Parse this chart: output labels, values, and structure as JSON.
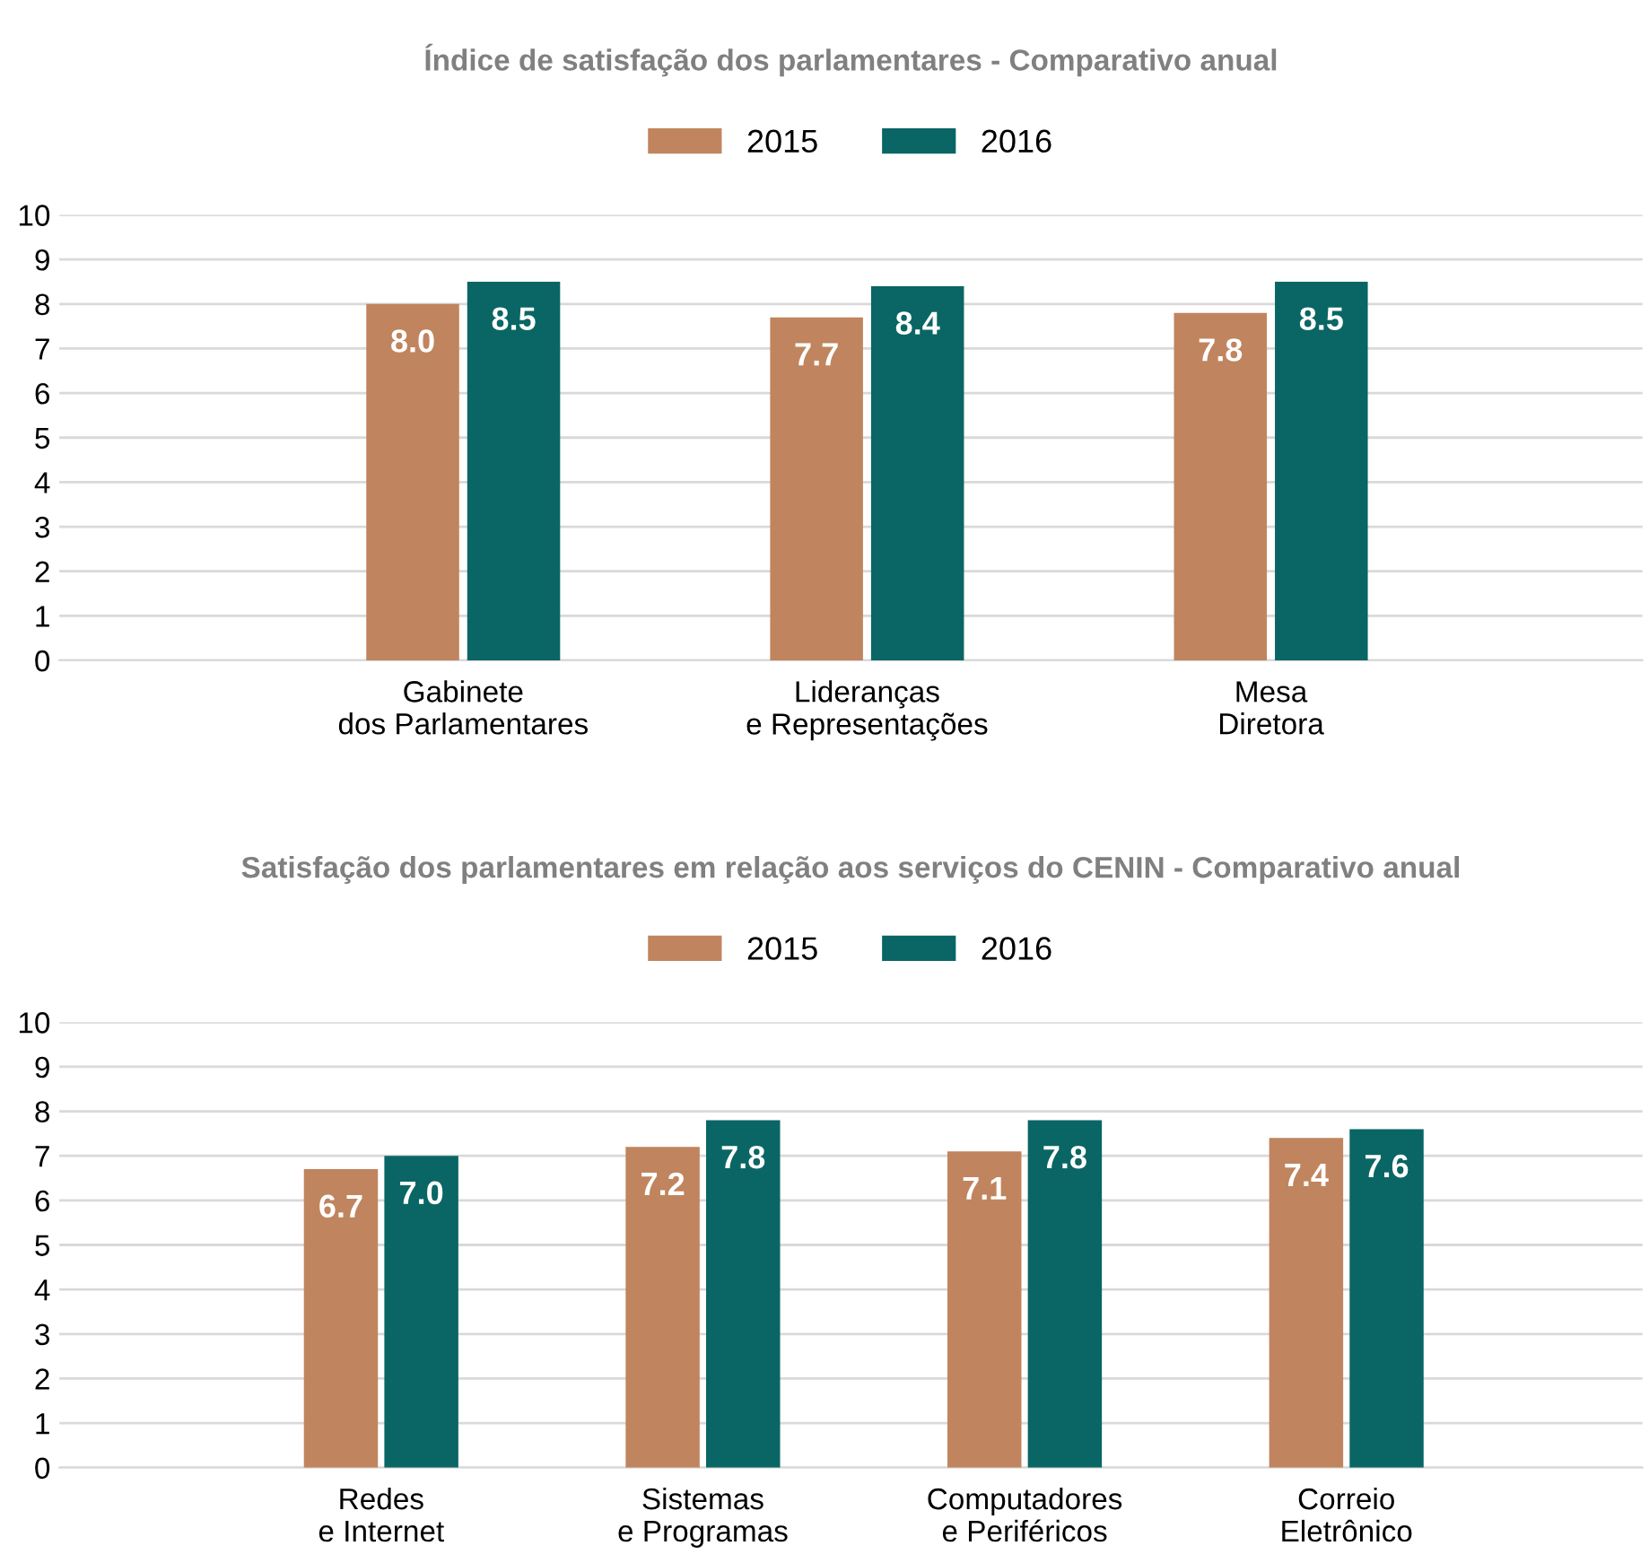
{
  "chart_data": [
    {
      "type": "bar",
      "title": "Índice de satisfação dos parlamentares - Comparativo anual",
      "categories": [
        "Gabinete\ndos Parlamentares",
        "Lideranças\ne Representações",
        "Mesa\nDiretora"
      ],
      "series": [
        {
          "name": "2015",
          "color": "#c0855e",
          "values": [
            8.0,
            7.7,
            7.8
          ],
          "value_labels": [
            "8.0",
            "7.7",
            "7.8"
          ]
        },
        {
          "name": "2016",
          "color": "#0a6664",
          "values": [
            8.5,
            8.4,
            8.5
          ],
          "value_labels": [
            "8.5",
            "8.4",
            "8.5"
          ]
        }
      ],
      "ylim": [
        0,
        10
      ],
      "yticks": [
        0,
        1,
        2,
        3,
        4,
        5,
        6,
        7,
        8,
        9,
        10
      ],
      "grid": "y",
      "legend": "top"
    },
    {
      "type": "bar",
      "title": "Satisfação dos parlamentares em relação aos serviços do CENIN - Comparativo anual",
      "categories": [
        "Redes\ne Internet",
        "Sistemas\ne Programas",
        "Computadores\ne Periféricos",
        "Correio\nEletrônico"
      ],
      "series": [
        {
          "name": "2015",
          "color": "#c0855e",
          "values": [
            6.7,
            7.2,
            7.1,
            7.4
          ],
          "value_labels": [
            "6.7",
            "7.2",
            "7.1",
            "7.4"
          ]
        },
        {
          "name": "2016",
          "color": "#0a6664",
          "values": [
            7.0,
            7.8,
            7.8,
            7.6
          ],
          "value_labels": [
            "7.0",
            "7.8",
            "7.8",
            "7.6"
          ]
        }
      ],
      "ylim": [
        0,
        10
      ],
      "yticks": [
        0,
        1,
        2,
        3,
        4,
        5,
        6,
        7,
        8,
        9,
        10
      ],
      "grid": "y",
      "legend": "top"
    }
  ]
}
